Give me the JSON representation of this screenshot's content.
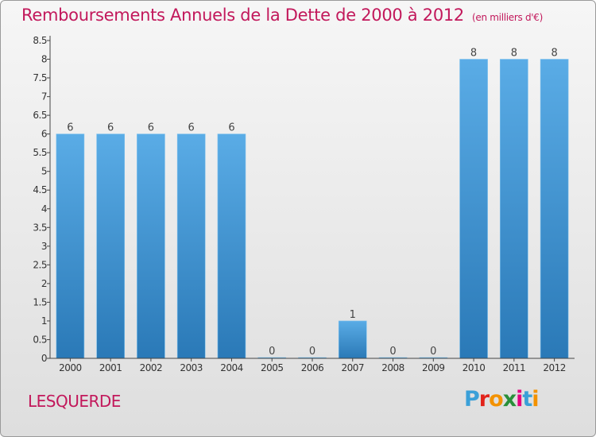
{
  "header": {
    "title": "Remboursements Annuels de la Dette de 2000 à 2012",
    "unit": "(en milliers d'€)"
  },
  "footer": {
    "commune": "LESQUERDE",
    "logo_letters": [
      "P",
      "r",
      "o",
      "x",
      "i",
      "t",
      "i"
    ],
    "logo_colors": [
      "#3aa0d8",
      "#e2231a",
      "#f39200",
      "#2a8f3a",
      "#e6007e",
      "#3aa0d8",
      "#f39200"
    ]
  },
  "colors": {
    "bar_top": "#5aace6",
    "bar_bottom": "#2a79b7",
    "text": "#c2185b"
  },
  "chart_data": {
    "type": "bar",
    "categories": [
      "2000",
      "2001",
      "2002",
      "2003",
      "2004",
      "2005",
      "2006",
      "2007",
      "2008",
      "2009",
      "2010",
      "2011",
      "2012"
    ],
    "values": [
      6,
      6,
      6,
      6,
      6,
      0,
      0,
      1,
      0,
      0,
      8,
      8,
      8
    ],
    "data_labels": [
      "6",
      "6",
      "6",
      "6",
      "6",
      "0",
      "0",
      "1",
      "0",
      "0",
      "8",
      "8",
      "8"
    ],
    "yticks": [
      "0",
      "0.5",
      "1",
      "1.5",
      "2",
      "2.5",
      "3",
      "3.5",
      "4",
      "4.5",
      "5",
      "5.5",
      "6",
      "6.5",
      "7",
      "7.5",
      "8",
      "8.5"
    ],
    "ylim": [
      0,
      8.5
    ],
    "grid": false
  }
}
